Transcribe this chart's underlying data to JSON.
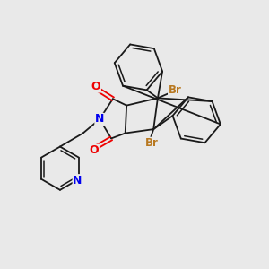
{
  "bg_color": "#e9e9e9",
  "bond_color": "#1a1a1a",
  "bond_lw": 1.3,
  "N_color": "#0000ee",
  "O_color": "#ee0000",
  "Br_color": "#b87820",
  "figsize": [
    3.0,
    3.0
  ],
  "dpi": 100,
  "xlim": [
    0,
    10
  ],
  "ylim": [
    0,
    10
  ]
}
